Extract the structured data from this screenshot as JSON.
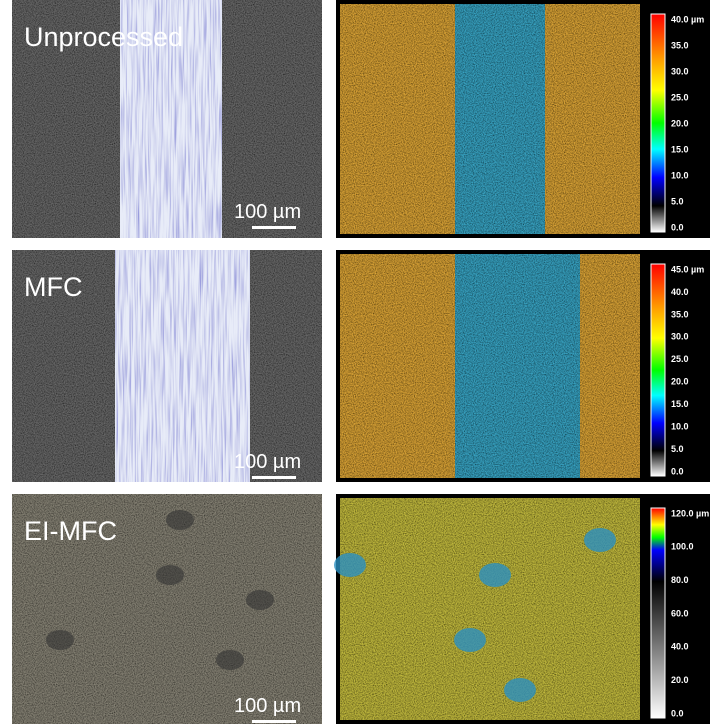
{
  "panels": [
    {
      "label": "Unprocessed",
      "scale_bar": "100 µm",
      "colorbar": [
        "40.0 µm",
        "35.0",
        "30.0",
        "25.0",
        "20.0",
        "15.0",
        "10.0",
        "5.0",
        "0.0"
      ]
    },
    {
      "label": "MFC",
      "scale_bar": "100 µm",
      "colorbar": [
        "45.0 µm",
        "40.0",
        "35.0",
        "30.0",
        "25.0",
        "20.0",
        "15.0",
        "10.0",
        "5.0",
        "0.0"
      ]
    },
    {
      "label": "EI-MFC",
      "scale_bar": "100 µm",
      "colorbar": [
        "120.0 µm",
        "100.0",
        "80.0",
        "60.0",
        "40.0",
        "20.0",
        "0.0"
      ]
    }
  ]
}
